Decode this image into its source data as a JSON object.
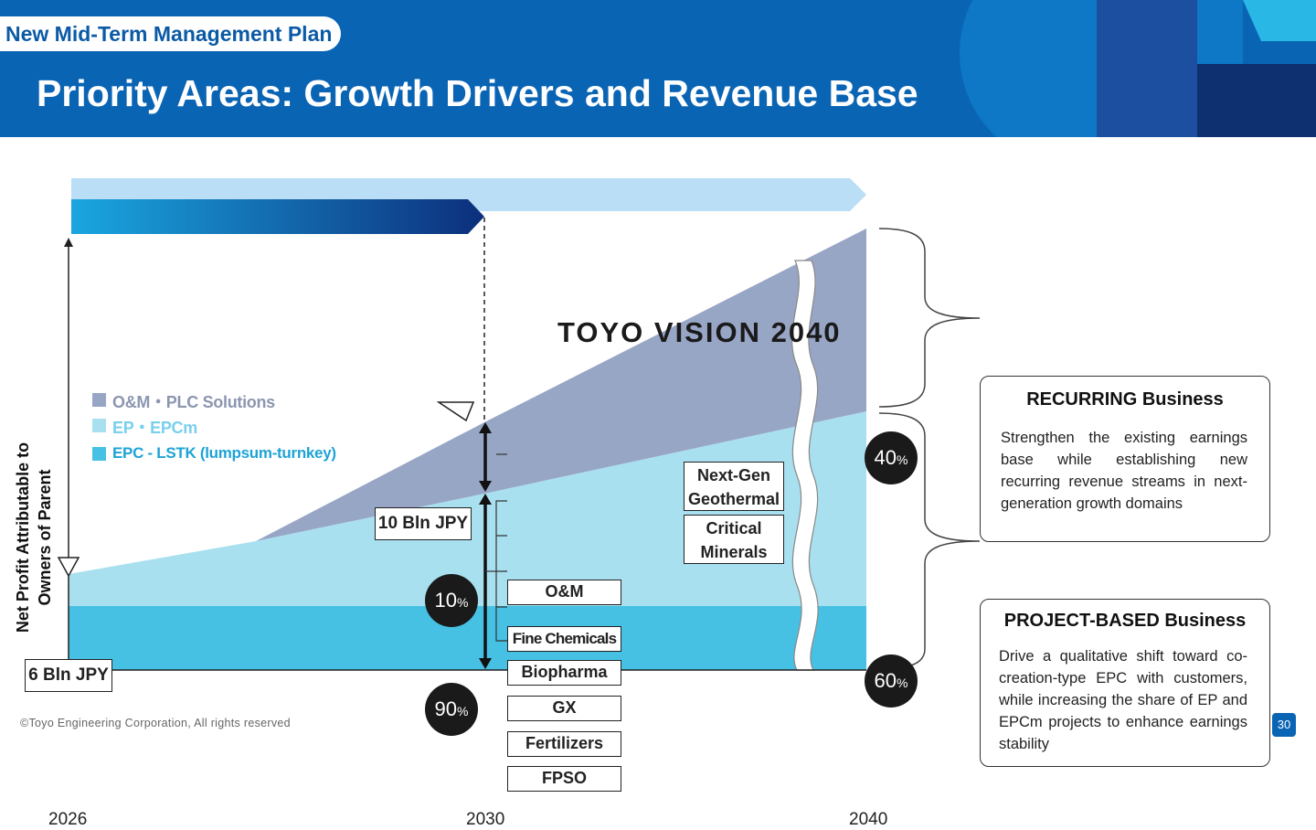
{
  "header": {
    "tag": "New Mid-Term Management Plan",
    "title": "Priority Areas: Growth Drivers and Revenue Base"
  },
  "vision_label": "TOYO VISION 2040",
  "plan_banner": "New Mid-Term Management Plan",
  "y_axis_label": [
    "Net Profit Attributable to",
    "Owners of Parent"
  ],
  "legend": [
    {
      "label": "O&M・PLC Solutions",
      "color": "#98a6c6"
    },
    {
      "label": "EP・EPCm",
      "color": "#a8e0f0"
    },
    {
      "label": "EPC - LSTK (lumpsum-turnkey)",
      "color": "#46c1e4"
    }
  ],
  "chart_data": {
    "type": "area",
    "x": [
      "2026",
      "2030",
      "2040"
    ],
    "start_value_label": "6 Bln JPY",
    "mid_value_label": "10 Bln JPY",
    "shares_2030": {
      "recurring_pct": "10",
      "project_pct": "90"
    },
    "shares_2040": {
      "recurring_pct": "40",
      "project_pct": "60"
    }
  },
  "domains_2030": {
    "recurring": [
      "O&M"
    ],
    "project": [
      "Fine Chemicals",
      "Biopharma",
      "GX",
      "Fertilizers",
      "FPSO"
    ]
  },
  "domains_2040": [
    "Next-Gen Geothermal",
    "Critical Minerals"
  ],
  "percent_sign": "%",
  "recurring": {
    "title": "RECURRING Business",
    "text": "Strengthen the existing earnings base while establishing new recurring revenue streams in next-generation growth domains"
  },
  "project": {
    "title": "PROJECT-BASED Business",
    "text": "Drive a qualitative shift toward co-creation-type EPC with customers, while increasing the share of EP and EPCm projects to enhance earnings stability"
  },
  "footer": "©Toyo Engineering Corporation, All rights reserved",
  "page_number": "30"
}
